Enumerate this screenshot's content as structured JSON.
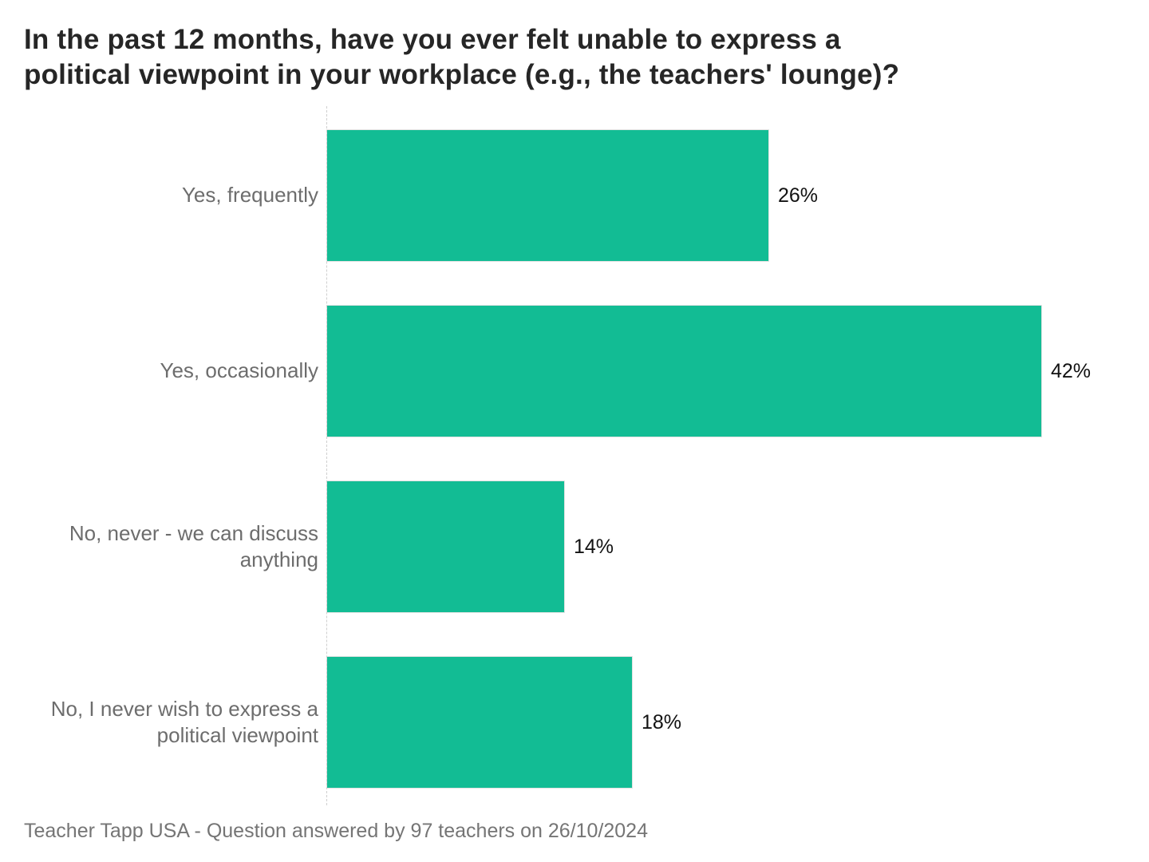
{
  "chart_data": {
    "type": "bar",
    "orientation": "horizontal",
    "title": "In the past 12 months, have you ever felt unable to express a\npolitical viewpoint in your workplace (e.g., the teachers' lounge)?",
    "categories": [
      "Yes, frequently",
      "Yes, occasionally",
      "No, never - we can discuss anything",
      "No, I never wish to express a political viewpoint"
    ],
    "values": [
      26,
      42,
      14,
      18
    ],
    "value_labels": [
      "26%",
      "42%",
      "14%",
      "18%"
    ],
    "xlim": [
      0,
      42
    ],
    "bar_color": "#12bc94",
    "grid": false,
    "legend": false,
    "xlabel": "",
    "ylabel": "",
    "source": "Teacher Tapp USA - Question answered by 97 teachers on 26/10/2024"
  }
}
